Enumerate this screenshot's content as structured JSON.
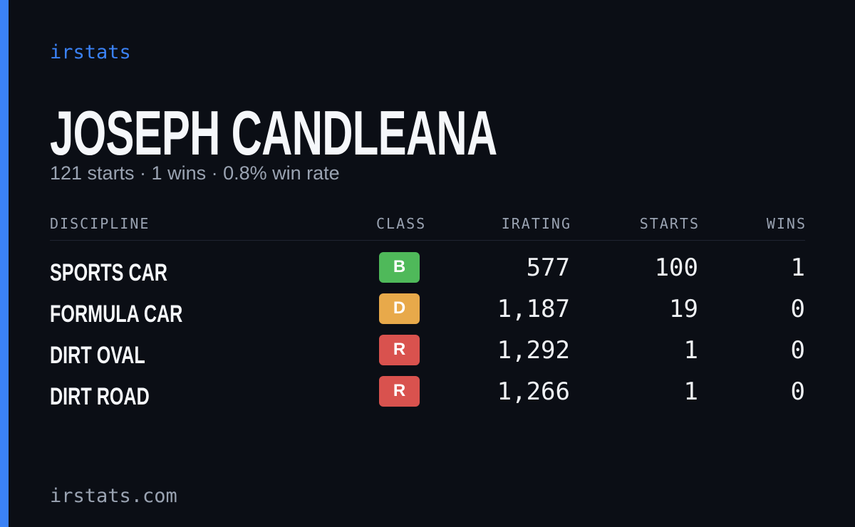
{
  "brand": "irstats",
  "header": {
    "name": "JOSEPH CANDLEANA",
    "summary": "121 starts · 1 wins · 0.8% win rate"
  },
  "table": {
    "columns": [
      "DISCIPLINE",
      "CLASS",
      "IRATING",
      "STARTS",
      "WINS"
    ],
    "rows": [
      [
        "SPORTS CAR",
        "B",
        "577",
        "100",
        "1"
      ],
      [
        "FORMULA CAR",
        "D",
        "1,187",
        "19",
        "0"
      ],
      [
        "DIRT OVAL",
        "R",
        "1,292",
        "1",
        "0"
      ],
      [
        "DIRT ROAD",
        "R",
        "1,266",
        "1",
        "0"
      ]
    ]
  },
  "footer": "irstats.com"
}
